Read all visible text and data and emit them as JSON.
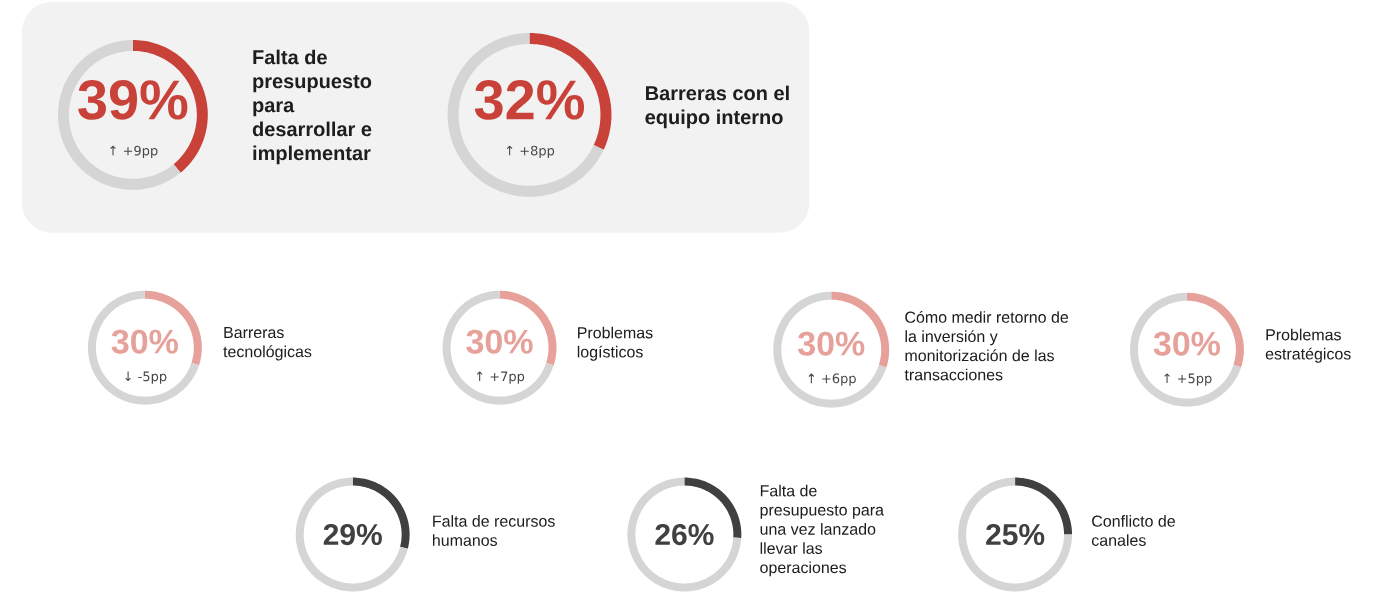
{
  "chart_data": [
    {
      "type": "donut",
      "categories": [
        "Falta de presupuesto para desarrollar e implementar",
        null
      ],
      "values": [
        39,
        61
      ],
      "colors": [
        "#c8423a",
        "#d5d5d5"
      ],
      "value_labels": [
        "39%",
        null
      ],
      "annotations": [
        "↑ +9pp"
      ]
    },
    {
      "type": "donut",
      "categories": [
        "Barreras con el equipo interno",
        null
      ],
      "values": [
        32,
        68
      ],
      "colors": [
        "#c8423a",
        "#d5d5d5"
      ],
      "value_labels": [
        "32%",
        null
      ],
      "annotations": [
        "↑ +8pp"
      ]
    },
    {
      "type": "donut",
      "categories": [
        "Barreras tecnológicas",
        null
      ],
      "values": [
        30,
        70
      ],
      "colors": [
        "#e6a19a",
        "#d5d5d5"
      ],
      "value_labels": [
        "30%",
        null
      ],
      "annotations": [
        "↓ -5pp"
      ]
    },
    {
      "type": "donut",
      "categories": [
        "Problemas logísticos",
        null
      ],
      "values": [
        30,
        70
      ],
      "colors": [
        "#e6a19a",
        "#d5d5d5"
      ],
      "value_labels": [
        "30%",
        null
      ],
      "annotations": [
        "↑ +7pp"
      ]
    },
    {
      "type": "donut",
      "categories": [
        "Cómo medir retorno de la inversión y monitorización de las transacciones",
        null
      ],
      "values": [
        30,
        70
      ],
      "colors": [
        "#e6a19a",
        "#d5d5d5"
      ],
      "value_labels": [
        "30%",
        null
      ],
      "annotations": [
        "↑ +6pp"
      ]
    },
    {
      "type": "donut",
      "categories": [
        "Problemas estratégicos",
        null
      ],
      "values": [
        30,
        70
      ],
      "colors": [
        "#e6a19a",
        "#d5d5d5"
      ],
      "value_labels": [
        "30%",
        null
      ],
      "annotations": [
        "↑ +5pp"
      ]
    },
    {
      "type": "donut",
      "categories": [
        "Falta de recursos humanos",
        null
      ],
      "values": [
        29,
        71
      ],
      "colors": [
        "#404040",
        "#d5d5d5"
      ],
      "value_labels": [
        "29%",
        null
      ]
    },
    {
      "type": "donut",
      "categories": [
        "Falta de presupuesto para una vez lanzado llevar las operaciones",
        null
      ],
      "values": [
        26,
        74
      ],
      "colors": [
        "#404040",
        "#d5d5d5"
      ],
      "value_labels": [
        "26%",
        null
      ]
    },
    {
      "type": "donut",
      "categories": [
        "Conflicto de canales",
        null
      ],
      "values": [
        25,
        75
      ],
      "colors": [
        "#404040",
        "#d5d5d5"
      ],
      "value_labels": [
        "25%",
        null
      ]
    }
  ]
}
